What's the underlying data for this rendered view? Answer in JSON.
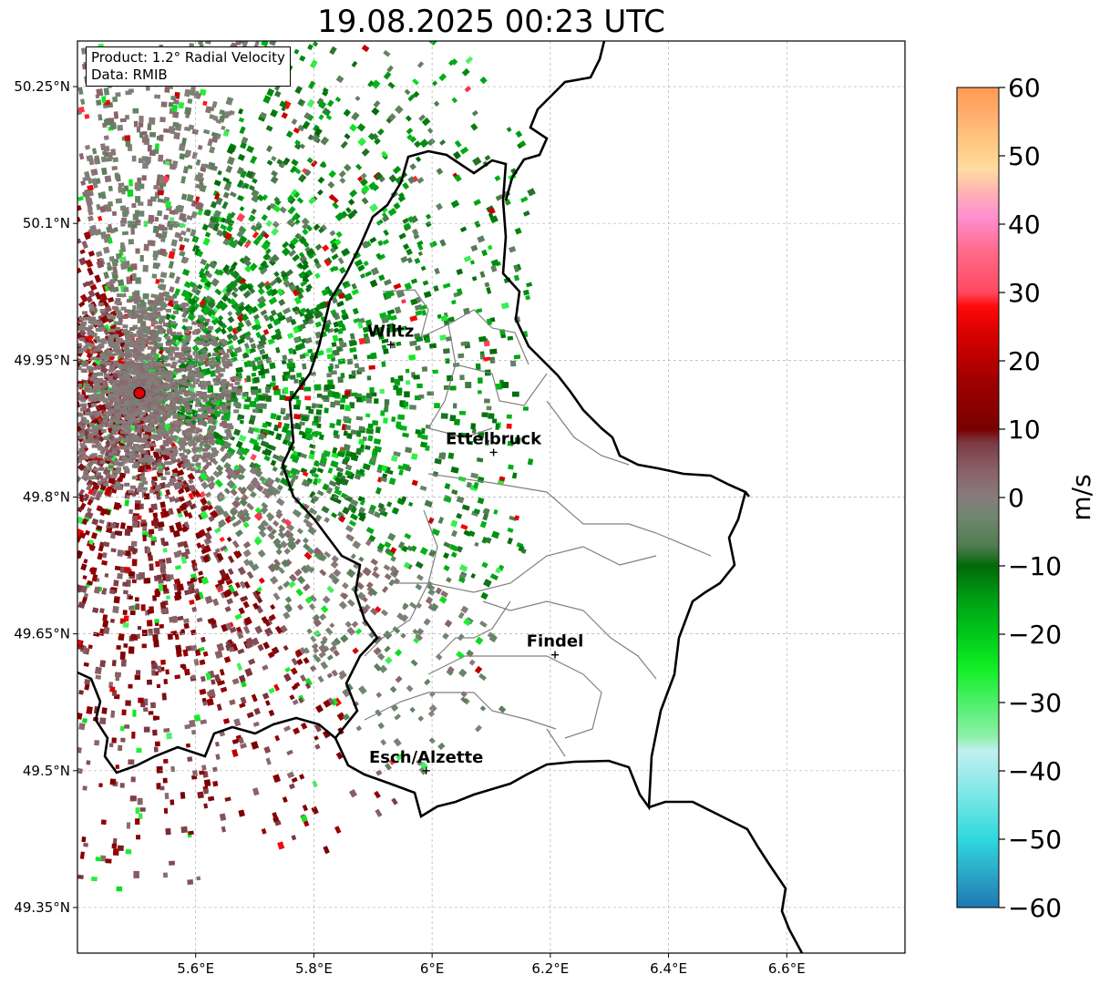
{
  "title": "19.08.2025 00:23 UTC",
  "info": {
    "product_line": "Product: 1.2° Radial Velocity",
    "data_line": "Data: RMIB"
  },
  "map": {
    "lon_range": [
      5.4,
      6.8
    ],
    "lat_range": [
      49.3,
      50.3
    ],
    "lon_ticks": [
      {
        "value": 5.6,
        "label": "5.6°E"
      },
      {
        "value": 5.8,
        "label": "5.8°E"
      },
      {
        "value": 6.0,
        "label": "6°E"
      },
      {
        "value": 6.2,
        "label": "6.2°E"
      },
      {
        "value": 6.4,
        "label": "6.4°E"
      },
      {
        "value": 6.6,
        "label": "6.6°E"
      }
    ],
    "lat_ticks": [
      {
        "value": 50.25,
        "label": "50.25°N"
      },
      {
        "value": 50.1,
        "label": "50.1°N"
      },
      {
        "value": 49.95,
        "label": "49.95°N"
      },
      {
        "value": 49.8,
        "label": "49.8°N"
      },
      {
        "value": 49.65,
        "label": "49.65°N"
      },
      {
        "value": 49.5,
        "label": "49.5°N"
      },
      {
        "value": 49.35,
        "label": "49.35°N"
      }
    ],
    "radar_site": {
      "lon": 5.505,
      "lat": 49.914
    },
    "cities": [
      {
        "name": "Wiltz",
        "lon": 5.93,
        "lat": 49.967
      },
      {
        "name": "Ettelbruck",
        "lon": 6.104,
        "lat": 49.849
      },
      {
        "name": "Findel",
        "lon": 6.208,
        "lat": 49.627
      },
      {
        "name": "Esch/Alzette",
        "lon": 5.99,
        "lat": 49.5
      }
    ],
    "grid": true
  },
  "colorbar": {
    "unit": "m/s",
    "min": -60,
    "max": 60,
    "ticks": [
      {
        "value": 60,
        "label": "60"
      },
      {
        "value": 50,
        "label": "50"
      },
      {
        "value": 40,
        "label": "40"
      },
      {
        "value": 30,
        "label": "30"
      },
      {
        "value": 20,
        "label": "20"
      },
      {
        "value": 10,
        "label": "10"
      },
      {
        "value": 0,
        "label": "0"
      },
      {
        "value": -10,
        "label": "−10"
      },
      {
        "value": -20,
        "label": "−20"
      },
      {
        "value": -30,
        "label": "−30"
      },
      {
        "value": -40,
        "label": "−40"
      },
      {
        "value": -50,
        "label": "−50"
      },
      {
        "value": -60,
        "label": "−60"
      }
    ],
    "color_stops": [
      {
        "value": -60,
        "color": "#1f77b4"
      },
      {
        "value": -55,
        "color": "#2aa8c8"
      },
      {
        "value": -50,
        "color": "#2ed8de"
      },
      {
        "value": -45,
        "color": "#6ae4e4"
      },
      {
        "value": -40,
        "color": "#a2ecec"
      },
      {
        "value": -37,
        "color": "#c0f0f0"
      },
      {
        "value": -35,
        "color": "#8ef0a8"
      },
      {
        "value": -30,
        "color": "#4cf06a"
      },
      {
        "value": -25,
        "color": "#12ee24"
      },
      {
        "value": -20,
        "color": "#00c81a"
      },
      {
        "value": -15,
        "color": "#00a014"
      },
      {
        "value": -10,
        "color": "#006a08"
      },
      {
        "value": -7,
        "color": "#527c52"
      },
      {
        "value": -3,
        "color": "#6e866e"
      },
      {
        "value": 0,
        "color": "#887c7c"
      },
      {
        "value": 4,
        "color": "#8a6068"
      },
      {
        "value": 8,
        "color": "#7c3a44"
      },
      {
        "value": 10,
        "color": "#780000"
      },
      {
        "value": 17,
        "color": "#a00000"
      },
      {
        "value": 24,
        "color": "#d80000"
      },
      {
        "value": 28,
        "color": "#ff0a0a"
      },
      {
        "value": 30,
        "color": "#ff4860"
      },
      {
        "value": 36,
        "color": "#ff6a8a"
      },
      {
        "value": 41,
        "color": "#ff8ed0"
      },
      {
        "value": 44,
        "color": "#ffaab8"
      },
      {
        "value": 48,
        "color": "#ffdca0"
      },
      {
        "value": 52,
        "color": "#ffc880"
      },
      {
        "value": 56,
        "color": "#ffae6e"
      },
      {
        "value": 60,
        "color": "#ff9a52"
      }
    ]
  }
}
